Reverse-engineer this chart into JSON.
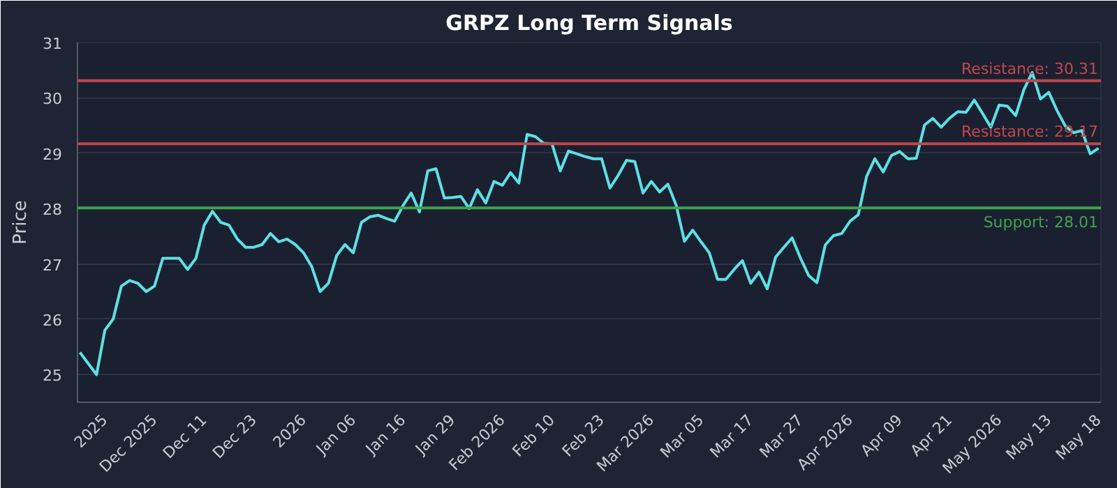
{
  "chart_data": {
    "type": "line",
    "title": "GRPZ Long Term Signals",
    "ylabel": "Price",
    "categories": [
      null,
      null,
      null,
      "2025",
      null,
      null,
      null,
      null,
      null,
      "Dec 2025",
      null,
      null,
      null,
      null,
      null,
      "Dec 11",
      null,
      null,
      null,
      null,
      null,
      "Dec 23",
      null,
      null,
      null,
      null,
      null,
      "2026",
      null,
      null,
      null,
      null,
      null,
      "Jan 06",
      null,
      null,
      null,
      null,
      null,
      "Jan 16",
      null,
      null,
      null,
      null,
      null,
      "Jan 29",
      null,
      null,
      null,
      null,
      null,
      "Feb 2026",
      null,
      null,
      null,
      null,
      null,
      "Feb 10",
      null,
      null,
      null,
      null,
      null,
      "Feb 23",
      null,
      null,
      null,
      null,
      null,
      "Mar 2026",
      null,
      null,
      null,
      null,
      null,
      "Mar 05",
      null,
      null,
      null,
      null,
      null,
      "Mar 17",
      null,
      null,
      null,
      null,
      null,
      "Mar 27",
      null,
      null,
      null,
      null,
      null,
      "Apr 2026",
      null,
      null,
      null,
      null,
      null,
      "Apr 09",
      null,
      null,
      null,
      null,
      null,
      "Apr 21",
      null,
      null,
      null,
      null,
      null,
      "May 2026",
      null,
      null,
      null,
      null,
      null,
      "May 13",
      null,
      null,
      null,
      null,
      null,
      "May 18"
    ],
    "series": [
      {
        "color": "#5ce1e6",
        "values": [
          25.4,
          25.2,
          25.0,
          25.8,
          26.0,
          26.6,
          26.7,
          26.65,
          26.5,
          26.6,
          27.1,
          27.1,
          27.1,
          26.9,
          27.1,
          27.7,
          27.95,
          27.75,
          27.7,
          27.45,
          27.3,
          27.3,
          27.35,
          27.55,
          27.4,
          27.45,
          27.35,
          27.2,
          26.95,
          26.5,
          26.65,
          27.15,
          27.35,
          27.2,
          27.75,
          27.85,
          27.88,
          27.82,
          27.77,
          28.05,
          28.28,
          27.94,
          28.68,
          28.72,
          28.19,
          28.2,
          28.22,
          28.0,
          28.34,
          28.1,
          28.49,
          28.42,
          28.65,
          28.46,
          29.34,
          29.3,
          29.18,
          29.17,
          28.68,
          29.04,
          28.99,
          28.94,
          28.9,
          28.9,
          28.37,
          28.6,
          28.87,
          28.85,
          28.28,
          28.49,
          28.3,
          28.44,
          28.06,
          27.41,
          27.61,
          27.4,
          27.2,
          26.72,
          26.72,
          26.9,
          27.06,
          26.65,
          26.85,
          26.55,
          27.12,
          27.3,
          27.47,
          27.11,
          26.79,
          26.66,
          27.34,
          27.51,
          27.55,
          27.77,
          27.89,
          28.58,
          28.9,
          28.66,
          28.96,
          29.03,
          28.9,
          28.91,
          29.51,
          29.63,
          29.47,
          29.63,
          29.75,
          29.74,
          29.96,
          29.72,
          29.47,
          29.87,
          29.85,
          29.68,
          30.15,
          30.46,
          29.98,
          30.1,
          29.77,
          29.49,
          29.37,
          29.41,
          28.99,
          29.09
        ]
      }
    ],
    "ylim": [
      24.5,
      31
    ],
    "yticks": [
      25,
      26,
      27,
      28,
      29,
      30,
      31
    ],
    "grid": "y",
    "line_style": "solid",
    "ref_lines": [
      {
        "axis": "y",
        "value": 30.31,
        "label": "Resistance: 30.31",
        "color": "#c0474f"
      },
      {
        "axis": "y",
        "value": 29.17,
        "label": "Resistance: 29.17",
        "color": "#c0474f"
      },
      {
        "axis": "y",
        "value": 28.01,
        "label": "Support: 28.01",
        "color": "#3fa34d"
      }
    ]
  }
}
